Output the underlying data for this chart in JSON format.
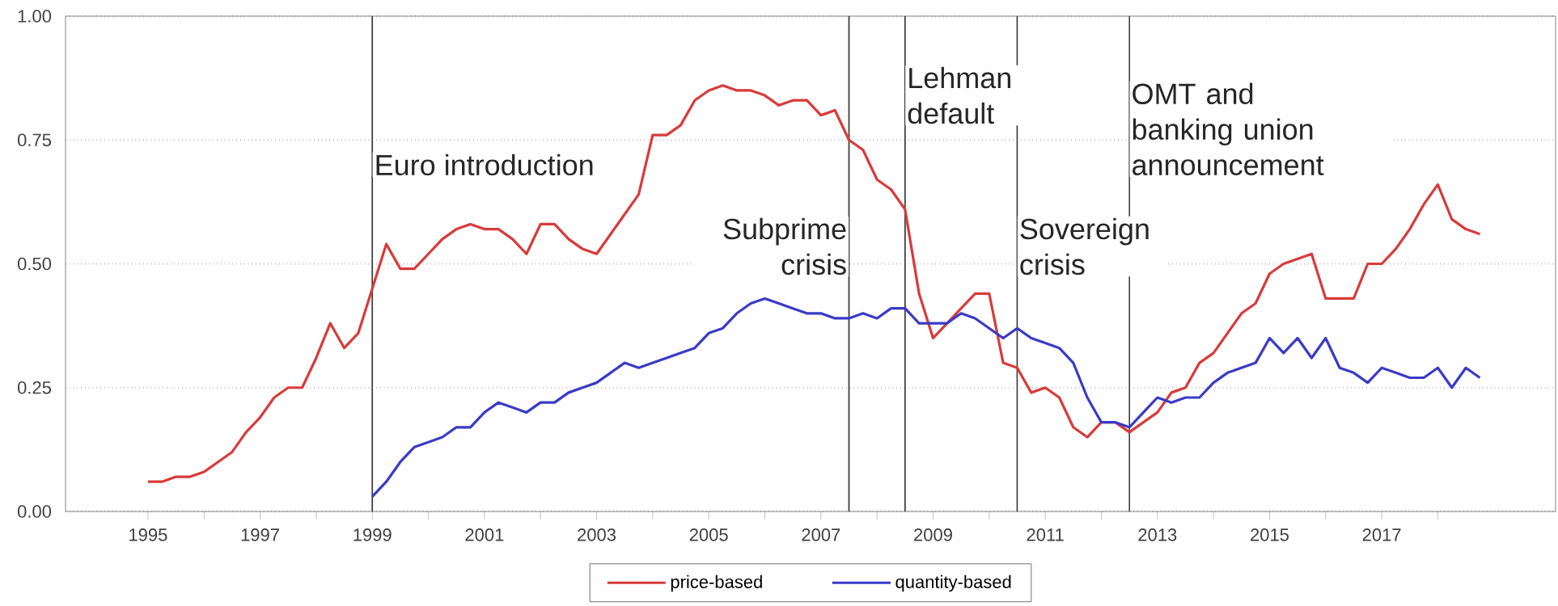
{
  "chart_data": {
    "type": "line",
    "xlim": [
      1993.53,
      2020.1
    ],
    "ylim": [
      0,
      1
    ],
    "xticks": [
      1995,
      {
        "value": 1996,
        "label": null
      },
      1997,
      {
        "value": 1998,
        "label": null
      },
      1999,
      {
        "value": 2000,
        "label": null
      },
      2001,
      {
        "value": 2002,
        "label": null
      },
      2003,
      {
        "value": 2004,
        "label": null
      },
      2005,
      {
        "value": 2006,
        "label": null
      },
      2007,
      {
        "value": 2008,
        "label": null
      },
      2009,
      {
        "value": 2010,
        "label": null
      },
      2011,
      {
        "value": 2012,
        "label": null
      },
      2013,
      {
        "value": 2014,
        "label": null
      },
      2015,
      {
        "value": 2016,
        "label": null
      },
      2017,
      {
        "value": 2018,
        "label": null
      }
    ],
    "yticks": [
      {
        "value": 0,
        "label": "0.00"
      },
      {
        "value": 0.25,
        "label": "0.25"
      },
      {
        "value": 0.5,
        "label": "0.50"
      },
      {
        "value": 0.75,
        "label": "0.75"
      },
      {
        "value": 1,
        "label": "1.00"
      }
    ],
    "grid": "y",
    "legend": "bottom",
    "marker": "none",
    "line_style": "solid",
    "series": [
      {
        "name": "price-based",
        "color": "#d93a3a",
        "x": [
          1995,
          1995.25,
          1995.5,
          1995.75,
          1996,
          1996.25,
          1996.5,
          1996.75,
          1997,
          1997.25,
          1997.5,
          1997.75,
          1998,
          1998.25,
          1998.5,
          1998.75,
          1999,
          1999.25,
          1999.5,
          1999.75,
          2000,
          2000.25,
          2000.5,
          2000.75,
          2001,
          2001.25,
          2001.5,
          2001.75,
          2002,
          2002.25,
          2002.5,
          2002.75,
          2003,
          2003.25,
          2003.5,
          2003.75,
          2004,
          2004.25,
          2004.5,
          2004.75,
          2005,
          2005.25,
          2005.5,
          2005.75,
          2006,
          2006.25,
          2006.5,
          2006.75,
          2007,
          2007.25,
          2007.5,
          2007.75,
          2008,
          2008.25,
          2008.5,
          2008.75,
          2009,
          2009.25,
          2009.5,
          2009.75,
          2010,
          2010.25,
          2010.5,
          2010.75,
          2011,
          2011.25,
          2011.5,
          2011.75,
          2012,
          2012.25,
          2012.5,
          2012.75,
          2013,
          2013.25,
          2013.5,
          2013.75,
          2014,
          2014.25,
          2014.5,
          2014.75,
          2015,
          2015.25,
          2015.5,
          2015.75,
          2016,
          2016.25,
          2016.5,
          2016.75,
          2017,
          2017.25,
          2017.5,
          2017.75,
          2018,
          2018.25,
          2018.5,
          2018.75
        ],
        "values": [
          0.06,
          0.06,
          0.07,
          0.07,
          0.08,
          0.1,
          0.12,
          0.16,
          0.19,
          0.23,
          0.25,
          0.25,
          0.31,
          0.38,
          0.33,
          0.36,
          0.45,
          0.54,
          0.49,
          0.49,
          0.52,
          0.55,
          0.57,
          0.58,
          0.57,
          0.57,
          0.55,
          0.52,
          0.58,
          0.58,
          0.55,
          0.53,
          0.52,
          0.56,
          0.6,
          0.64,
          0.76,
          0.76,
          0.78,
          0.83,
          0.85,
          0.86,
          0.85,
          0.85,
          0.84,
          0.82,
          0.83,
          0.83,
          0.8,
          0.81,
          0.75,
          0.73,
          0.67,
          0.65,
          0.61,
          0.44,
          0.35,
          0.38,
          0.41,
          0.44,
          0.44,
          0.3,
          0.29,
          0.24,
          0.25,
          0.23,
          0.17,
          0.15,
          0.18,
          0.18,
          0.16,
          0.18,
          0.2,
          0.24,
          0.25,
          0.3,
          0.32,
          0.36,
          0.4,
          0.42,
          0.48,
          0.5,
          0.51,
          0.52,
          0.43,
          0.43,
          0.43,
          0.5,
          0.5,
          0.53,
          0.57,
          0.62,
          0.66,
          0.59,
          0.57,
          0.56
        ]
      },
      {
        "name": "quantity-based",
        "color": "#3a3ac8",
        "x": [
          1999,
          1999.25,
          1999.5,
          1999.75,
          2000,
          2000.25,
          2000.5,
          2000.75,
          2001,
          2001.25,
          2001.5,
          2001.75,
          2002,
          2002.25,
          2002.5,
          2002.75,
          2003,
          2003.25,
          2003.5,
          2003.75,
          2004,
          2004.25,
          2004.5,
          2004.75,
          2005,
          2005.25,
          2005.5,
          2005.75,
          2006,
          2006.25,
          2006.5,
          2006.75,
          2007,
          2007.25,
          2007.5,
          2007.75,
          2008,
          2008.25,
          2008.5,
          2008.75,
          2009,
          2009.25,
          2009.5,
          2009.75,
          2010,
          2010.25,
          2010.5,
          2010.75,
          2011,
          2011.25,
          2011.5,
          2011.75,
          2012,
          2012.25,
          2012.5,
          2012.75,
          2013,
          2013.25,
          2013.5,
          2013.75,
          2014,
          2014.25,
          2014.5,
          2014.75,
          2015,
          2015.25,
          2015.5,
          2015.75,
          2016,
          2016.25,
          2016.5,
          2016.75,
          2017,
          2017.25,
          2017.5,
          2017.75,
          2018,
          2018.25,
          2018.5,
          2018.75
        ],
        "values": [
          0.03,
          0.06,
          0.1,
          0.13,
          0.14,
          0.15,
          0.17,
          0.17,
          0.2,
          0.22,
          0.21,
          0.2,
          0.22,
          0.22,
          0.24,
          0.25,
          0.26,
          0.28,
          0.3,
          0.29,
          0.3,
          0.31,
          0.32,
          0.33,
          0.36,
          0.37,
          0.4,
          0.42,
          0.43,
          0.42,
          0.41,
          0.4,
          0.4,
          0.39,
          0.39,
          0.4,
          0.39,
          0.41,
          0.41,
          0.38,
          0.38,
          0.38,
          0.4,
          0.39,
          0.37,
          0.35,
          0.37,
          0.35,
          0.34,
          0.33,
          0.3,
          0.23,
          0.18,
          0.18,
          0.17,
          0.2,
          0.23,
          0.22,
          0.23,
          0.23,
          0.26,
          0.28,
          0.29,
          0.3,
          0.35,
          0.32,
          0.35,
          0.31,
          0.35,
          0.29,
          0.28,
          0.26,
          0.29,
          0.28,
          0.27,
          0.27,
          0.29,
          0.25,
          0.29,
          0.27
        ]
      }
    ],
    "ref_lines": [
      {
        "axis": "x",
        "value": 1999.0,
        "label": "Euro introduction",
        "color": "#404040"
      },
      {
        "axis": "x",
        "value": 2007.5,
        "label": "Subprime crisis",
        "color": "#404040"
      },
      {
        "axis": "x",
        "value": 2008.5,
        "label": "Lehman default",
        "color": "#404040"
      },
      {
        "axis": "x",
        "value": 2010.5,
        "label": "Sovereign crisis",
        "color": "#404040"
      },
      {
        "axis": "x",
        "value": 2012.5,
        "label": "OMT and banking union announcement",
        "color": "#404040"
      }
    ]
  }
}
